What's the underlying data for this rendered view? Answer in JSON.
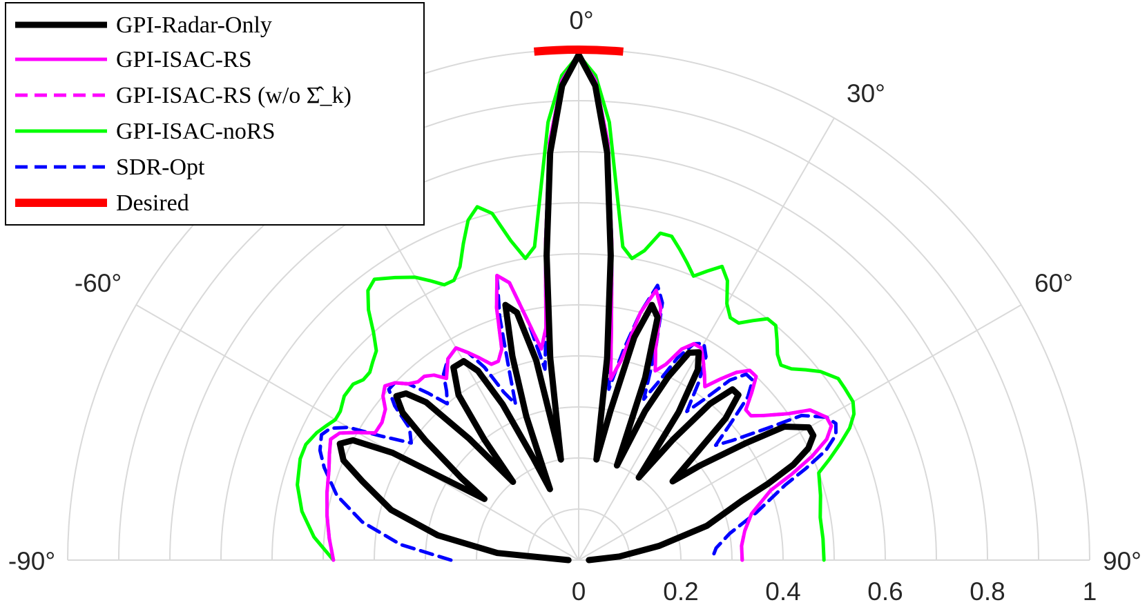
{
  "chart_data": {
    "type": "polar-line",
    "theta_range_deg": [
      -90,
      90
    ],
    "theta_zero_location": "top",
    "r_range": [
      0,
      1
    ],
    "r_ticks": [
      "0",
      "0.2",
      "0.4",
      "0.6",
      "0.8",
      "1"
    ],
    "r_tick_values": [
      0,
      0.2,
      0.4,
      0.6,
      0.8,
      1
    ],
    "theta_tick_labels": [
      "-90°",
      "-60°",
      "0°",
      "30°",
      "60°",
      "90°"
    ],
    "theta_tick_values": [
      -90,
      -60,
      0,
      30,
      60,
      90
    ],
    "theta_grid_deg": [
      -90,
      -60,
      -30,
      0,
      30,
      60,
      90
    ],
    "grid": true,
    "legend_placement": "top-left",
    "series": [
      {
        "name": "GPI-Radar-Only",
        "color": "#000000",
        "style": "solid",
        "width": "thick",
        "theta": [
          -90,
          -85,
          -80,
          -75,
          -70,
          -67,
          -64,
          -62,
          -60,
          -57,
          -55,
          -52,
          -50,
          -48,
          -46,
          -44,
          -42,
          -40,
          -38,
          -36,
          -33,
          -30,
          -28,
          -26,
          -24,
          -22,
          -20,
          -18,
          -16,
          -14,
          -12,
          -10,
          -8,
          -6,
          -4,
          -2,
          0,
          2,
          4,
          6,
          8,
          10,
          12,
          14,
          16,
          18,
          20,
          22,
          24,
          26,
          28,
          30,
          32,
          34,
          36,
          38,
          40,
          42,
          44,
          46,
          48,
          50,
          52,
          55,
          57,
          60,
          62,
          64,
          66,
          68,
          70,
          75,
          80,
          85,
          90
        ],
        "r": [
          0.02,
          0.16,
          0.28,
          0.38,
          0.45,
          0.5,
          0.52,
          0.5,
          0.42,
          0.22,
          0.28,
          0.38,
          0.45,
          0.48,
          0.47,
          0.43,
          0.32,
          0.2,
          0.3,
          0.4,
          0.45,
          0.45,
          0.42,
          0.34,
          0.22,
          0.15,
          0.3,
          0.42,
          0.52,
          0.5,
          0.4,
          0.2,
          0.4,
          0.6,
          0.8,
          0.93,
          0.99,
          0.93,
          0.8,
          0.6,
          0.4,
          0.2,
          0.3,
          0.45,
          0.52,
          0.5,
          0.38,
          0.2,
          0.32,
          0.4,
          0.46,
          0.47,
          0.44,
          0.35,
          0.2,
          0.3,
          0.4,
          0.45,
          0.45,
          0.4,
          0.3,
          0.24,
          0.3,
          0.4,
          0.48,
          0.52,
          0.52,
          0.5,
          0.46,
          0.4,
          0.34,
          0.26,
          0.16,
          0.08,
          0.02
        ]
      },
      {
        "name": "GPI-ISAC-RS",
        "color": "#ff00ff",
        "style": "solid",
        "width": "normal",
        "theta": [
          -90,
          -85,
          -80,
          -75,
          -70,
          -67,
          -64,
          -62,
          -60,
          -58,
          -55,
          -52,
          -50,
          -48,
          -46,
          -44,
          -42,
          -40,
          -38,
          -36,
          -33,
          -30,
          -28,
          -26,
          -24,
          -22,
          -20,
          -18,
          -16,
          -14,
          -12,
          -10,
          -8,
          -6,
          -4,
          -2,
          0,
          2,
          4,
          6,
          8,
          10,
          12,
          14,
          16,
          18,
          20,
          22,
          24,
          26,
          28,
          30,
          32,
          34,
          36,
          38,
          40,
          42,
          44,
          46,
          48,
          50,
          52,
          55,
          57,
          60,
          62,
          64,
          66,
          68,
          70,
          75,
          80,
          85,
          90
        ],
        "r": [
          0.48,
          0.49,
          0.5,
          0.51,
          0.52,
          0.53,
          0.54,
          0.53,
          0.5,
          0.47,
          0.47,
          0.48,
          0.5,
          0.51,
          0.5,
          0.48,
          0.47,
          0.47,
          0.46,
          0.44,
          0.47,
          0.48,
          0.46,
          0.44,
          0.42,
          0.42,
          0.44,
          0.52,
          0.58,
          0.56,
          0.48,
          0.42,
          0.46,
          0.62,
          0.82,
          0.94,
          0.99,
          0.94,
          0.82,
          0.62,
          0.46,
          0.36,
          0.4,
          0.5,
          0.55,
          0.52,
          0.44,
          0.4,
          0.42,
          0.46,
          0.48,
          0.48,
          0.46,
          0.44,
          0.42,
          0.45,
          0.48,
          0.5,
          0.5,
          0.47,
          0.44,
          0.44,
          0.46,
          0.5,
          0.54,
          0.56,
          0.56,
          0.54,
          0.5,
          0.45,
          0.4,
          0.35,
          0.33,
          0.32,
          0.32
        ]
      },
      {
        "name": "GPI-ISAC-RS (w/o Σ̂_k)",
        "color": "#ff00ff",
        "style": "dashed",
        "width": "normal",
        "theta": [
          -90,
          -85,
          -80,
          -75,
          -70,
          -67,
          -64,
          -62,
          -60,
          -58,
          -55,
          -52,
          -50,
          -48,
          -46,
          -44,
          -42,
          -40,
          -38,
          -36,
          -33,
          -30,
          -28,
          -26,
          -24,
          -22,
          -20,
          -18,
          -16,
          -14,
          -12,
          -10,
          -8,
          -6,
          -4,
          -2,
          0,
          2,
          4,
          6,
          8,
          10,
          12,
          14,
          16,
          18,
          20,
          22,
          24,
          26,
          28,
          30,
          32,
          34,
          36,
          38,
          40,
          42,
          44,
          46,
          48,
          50,
          52,
          55,
          57,
          60,
          62,
          64,
          66,
          68,
          70,
          75,
          80,
          85,
          90
        ],
        "r": [
          0.48,
          0.49,
          0.5,
          0.51,
          0.52,
          0.53,
          0.54,
          0.53,
          0.5,
          0.47,
          0.47,
          0.48,
          0.5,
          0.51,
          0.5,
          0.48,
          0.47,
          0.47,
          0.46,
          0.44,
          0.47,
          0.48,
          0.46,
          0.44,
          0.42,
          0.42,
          0.44,
          0.52,
          0.58,
          0.56,
          0.48,
          0.42,
          0.46,
          0.62,
          0.82,
          0.94,
          0.99,
          0.94,
          0.82,
          0.62,
          0.46,
          0.36,
          0.4,
          0.5,
          0.55,
          0.52,
          0.44,
          0.4,
          0.42,
          0.46,
          0.48,
          0.48,
          0.46,
          0.44,
          0.42,
          0.45,
          0.48,
          0.5,
          0.5,
          0.47,
          0.44,
          0.44,
          0.46,
          0.5,
          0.54,
          0.56,
          0.56,
          0.54,
          0.5,
          0.45,
          0.4,
          0.35,
          0.33,
          0.32,
          0.32
        ]
      },
      {
        "name": "GPI-ISAC-noRS",
        "color": "#00ff00",
        "style": "solid",
        "width": "normal",
        "theta": [
          -90,
          -85,
          -80,
          -75,
          -70,
          -67,
          -64,
          -62,
          -60,
          -58,
          -55,
          -52,
          -50,
          -48,
          -46,
          -44,
          -42,
          -40,
          -38,
          -36,
          -33,
          -30,
          -28,
          -26,
          -24,
          -22,
          -20,
          -18,
          -16,
          -14,
          -12,
          -10,
          -8,
          -6,
          -4,
          -2,
          0,
          2,
          4,
          6,
          8,
          10,
          12,
          14,
          16,
          18,
          20,
          22,
          24,
          26,
          28,
          30,
          32,
          34,
          36,
          38,
          40,
          42,
          44,
          46,
          48,
          50,
          52,
          55,
          57,
          60,
          62,
          64,
          66,
          68,
          70,
          75,
          80,
          85,
          90
        ],
        "r": [
          0.48,
          0.52,
          0.55,
          0.57,
          0.58,
          0.58,
          0.57,
          0.56,
          0.55,
          0.55,
          0.56,
          0.56,
          0.55,
          0.55,
          0.56,
          0.57,
          0.6,
          0.64,
          0.67,
          0.68,
          0.66,
          0.64,
          0.62,
          0.6,
          0.6,
          0.62,
          0.66,
          0.7,
          0.72,
          0.7,
          0.64,
          0.6,
          0.62,
          0.72,
          0.86,
          0.95,
          0.99,
          0.95,
          0.86,
          0.72,
          0.62,
          0.6,
          0.62,
          0.66,
          0.66,
          0.64,
          0.62,
          0.6,
          0.62,
          0.64,
          0.62,
          0.58,
          0.56,
          0.56,
          0.58,
          0.6,
          0.6,
          0.58,
          0.56,
          0.55,
          0.56,
          0.58,
          0.6,
          0.62,
          0.62,
          0.62,
          0.61,
          0.59,
          0.56,
          0.53,
          0.5,
          0.49,
          0.48,
          0.48,
          0.48
        ]
      },
      {
        "name": "SDR-Opt",
        "color": "#0000ff",
        "style": "dashed",
        "width": "normal",
        "theta": [
          -90,
          -85,
          -80,
          -75,
          -70,
          -67,
          -64,
          -62,
          -60,
          -58,
          -55,
          -52,
          -50,
          -48,
          -46,
          -44,
          -42,
          -40,
          -38,
          -36,
          -33,
          -30,
          -28,
          -26,
          -24,
          -22,
          -20,
          -18,
          -16,
          -14,
          -12,
          -10,
          -8,
          -6,
          -4,
          -2,
          0,
          2,
          4,
          6,
          8,
          10,
          12,
          14,
          16,
          18,
          20,
          22,
          24,
          26,
          28,
          30,
          32,
          34,
          36,
          38,
          40,
          42,
          44,
          46,
          48,
          50,
          52,
          55,
          57,
          60,
          62,
          64,
          66,
          68,
          70,
          75,
          80,
          85,
          90
        ],
        "r": [
          0.25,
          0.35,
          0.43,
          0.49,
          0.53,
          0.55,
          0.56,
          0.55,
          0.52,
          0.46,
          0.4,
          0.42,
          0.47,
          0.5,
          0.5,
          0.48,
          0.44,
          0.4,
          0.42,
          0.45,
          0.47,
          0.48,
          0.46,
          0.42,
          0.36,
          0.33,
          0.4,
          0.5,
          0.58,
          0.56,
          0.48,
          0.38,
          0.46,
          0.62,
          0.82,
          0.94,
          0.99,
          0.94,
          0.82,
          0.62,
          0.46,
          0.34,
          0.42,
          0.5,
          0.56,
          0.53,
          0.44,
          0.34,
          0.38,
          0.44,
          0.48,
          0.49,
          0.47,
          0.42,
          0.36,
          0.4,
          0.46,
          0.49,
          0.49,
          0.46,
          0.4,
          0.35,
          0.38,
          0.45,
          0.52,
          0.56,
          0.57,
          0.56,
          0.53,
          0.48,
          0.43,
          0.36,
          0.3,
          0.27,
          0.26
        ]
      },
      {
        "name": "Desired",
        "color": "#ff0000",
        "style": "solid",
        "width": "very-thick",
        "theta": [
          -5,
          5
        ],
        "r": [
          1,
          1
        ]
      }
    ]
  }
}
